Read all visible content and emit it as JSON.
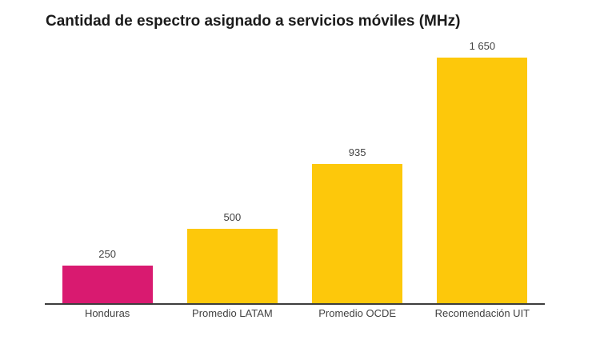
{
  "title": "Cantidad de espectro asignado a servicios móviles (MHz)",
  "chart_data": {
    "type": "bar",
    "title": "Cantidad de espectro asignado a servicios móviles (MHz)",
    "categories": [
      "Honduras",
      "Promedio LATAM",
      "Promedio OCDE",
      "Recomendación UIT"
    ],
    "values": [
      250,
      500,
      935,
      1650
    ],
    "value_labels": [
      "250",
      "500",
      "935",
      "1 650"
    ],
    "xlabel": "",
    "ylabel": "",
    "ylim": [
      0,
      1650
    ],
    "grid": false,
    "legend": "none",
    "bar_colors": [
      "#d91a70",
      "#fdc80b",
      "#fdc80b",
      "#fdc80b"
    ],
    "highlight_color": "#d91a70",
    "default_color": "#fdc80b",
    "axis_color": "#3d3d3d",
    "label_color": "#424242",
    "title_color": "#1b1b1b",
    "background_color": "#ffffff"
  }
}
